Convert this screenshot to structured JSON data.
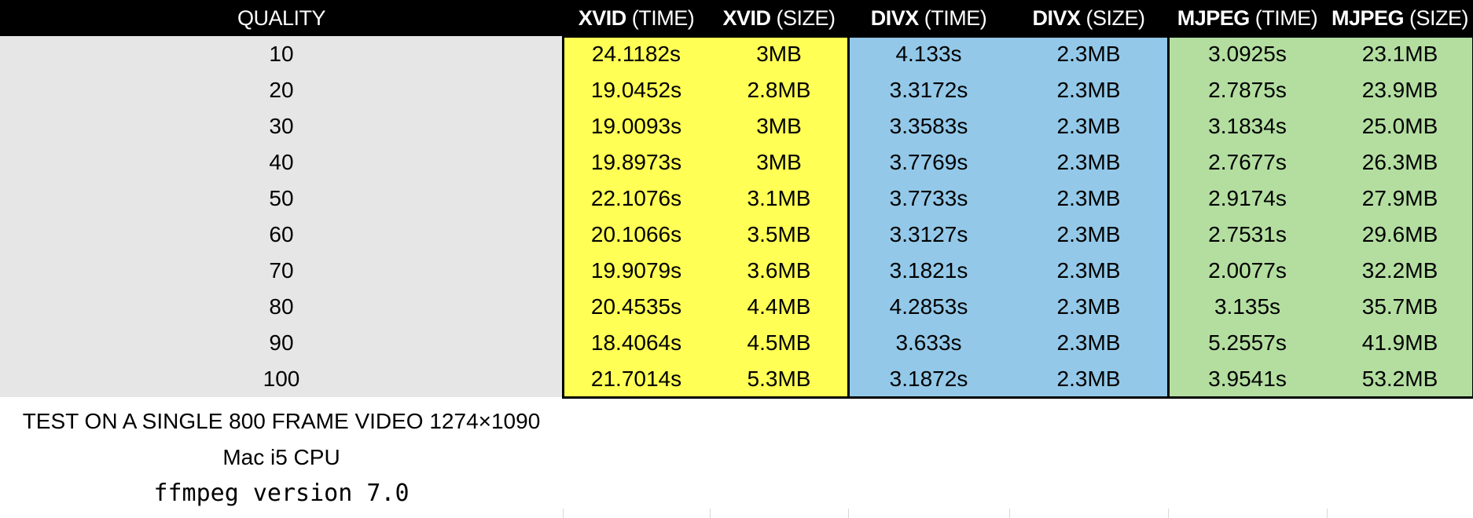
{
  "chart_data": {
    "type": "table",
    "columns": [
      {
        "bold": "",
        "rest": "QUALITY"
      },
      {
        "bold": "XVID",
        "rest": " (TIME)"
      },
      {
        "bold": "XVID",
        "rest": " (SIZE)"
      },
      {
        "bold": "DIVX",
        "rest": " (TIME)"
      },
      {
        "bold": "DIVX",
        "rest": " (SIZE)"
      },
      {
        "bold": "MJPEG",
        "rest": " (TIME)"
      },
      {
        "bold": "MJPEG",
        "rest": " (SIZE)"
      }
    ],
    "rows": [
      [
        "10",
        "24.1182s",
        "3MB",
        "4.133s",
        "2.3MB",
        "3.0925s",
        "23.1MB"
      ],
      [
        "20",
        "19.0452s",
        "2.8MB",
        "3.3172s",
        "2.3MB",
        "2.7875s",
        "23.9MB"
      ],
      [
        "30",
        "19.0093s",
        "3MB",
        "3.3583s",
        "2.3MB",
        "3.1834s",
        "25.0MB"
      ],
      [
        "40",
        "19.8973s",
        "3MB",
        "3.7769s",
        "2.3MB",
        "2.7677s",
        "26.3MB"
      ],
      [
        "50",
        "22.1076s",
        "3.1MB",
        "3.7733s",
        "2.3MB",
        "2.9174s",
        "27.9MB"
      ],
      [
        "60",
        "20.1066s",
        "3.5MB",
        "3.3127s",
        "2.3MB",
        "2.7531s",
        "29.6MB"
      ],
      [
        "70",
        "19.9079s",
        "3.6MB",
        "3.1821s",
        "2.3MB",
        "2.0077s",
        "32.2MB"
      ],
      [
        "80",
        "20.4535s",
        "4.4MB",
        "4.2853s",
        "2.3MB",
        "3.135s",
        "35.7MB"
      ],
      [
        "90",
        "18.4064s",
        "4.5MB",
        "3.633s",
        "2.3MB",
        "5.2557s",
        "41.9MB"
      ],
      [
        "100",
        "21.7014s",
        "5.3MB",
        "3.1872s",
        "2.3MB",
        "3.9541s",
        "53.2MB"
      ]
    ],
    "notes": [
      "TEST ON A SINGLE 800 FRAME VIDEO 1274×1090",
      "Mac i5 CPU",
      "ffmpeg version 7.0"
    ],
    "colors": {
      "header_bg": "#000000",
      "header_text": "#ffffff",
      "quality_bg": "#e6e6e6",
      "xvid_bg": "#ffff55",
      "divx_bg": "#93c8e8",
      "mjpeg_bg": "#b3dea0"
    }
  }
}
